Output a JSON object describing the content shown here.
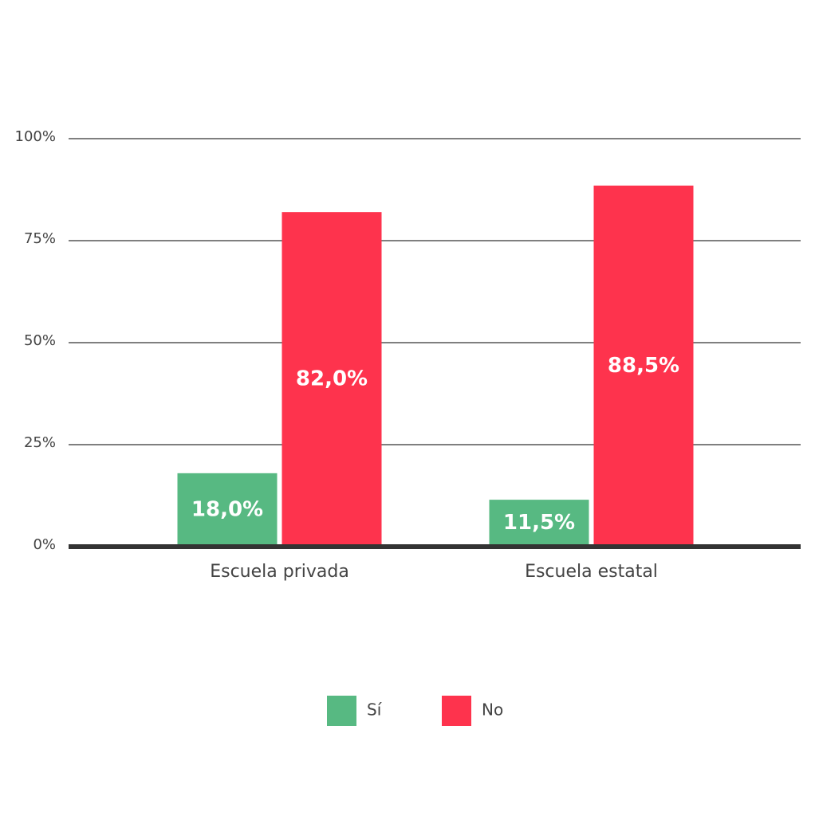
{
  "chart_data": {
    "type": "bar",
    "categories": [
      "Escuela privada",
      "Escuela estatal"
    ],
    "series": [
      {
        "name": "Sí",
        "color": "#57b982",
        "values": [
          18.0,
          11.5
        ],
        "value_labels": [
          "18,0%",
          "11,5%"
        ]
      },
      {
        "name": "No",
        "color": "#fe334d",
        "values": [
          82.0,
          88.5
        ],
        "value_labels": [
          "82,0%",
          "88,5%"
        ]
      }
    ],
    "ylim": [
      0,
      100
    ],
    "yticks": [
      {
        "value": 0,
        "label": "0%"
      },
      {
        "value": 25,
        "label": "25%"
      },
      {
        "value": 50,
        "label": "50%"
      },
      {
        "value": 75,
        "label": "75%"
      },
      {
        "value": 100,
        "label": "100%"
      }
    ],
    "grid": true,
    "legend": "bottom"
  }
}
